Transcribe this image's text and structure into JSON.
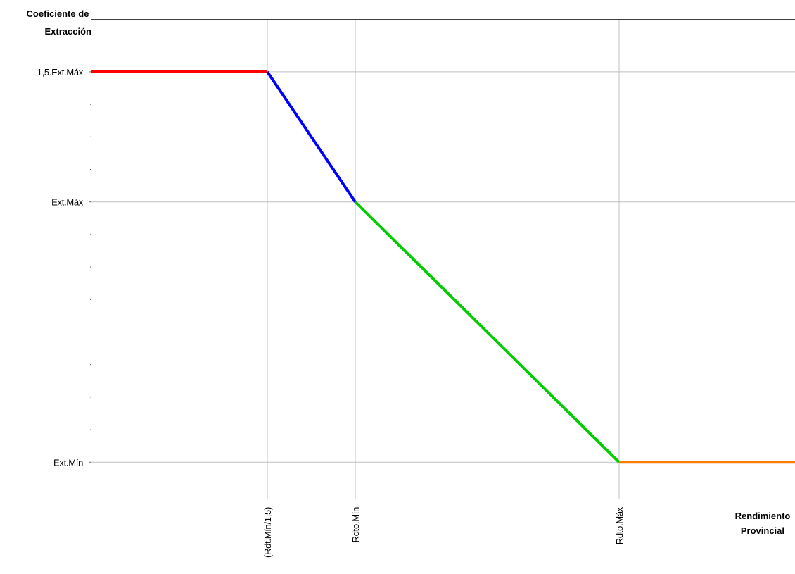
{
  "chart_data": {
    "type": "line",
    "ylabel": [
      "Coeficiente de",
      "Extracción"
    ],
    "xlabel": [
      "Rendimiento",
      "Provincial"
    ],
    "y_ticks": [
      {
        "label": "1,5.Ext.Máx",
        "value": 1.5
      },
      {
        "label": "Ext.Máx",
        "value": 1.0
      },
      {
        "label": "Ext.Mín",
        "value": 0.0
      }
    ],
    "y_minor_ticks": [
      1.375,
      1.25,
      1.125,
      0.875,
      0.75,
      0.625,
      0.5,
      0.375,
      0.25,
      0.125
    ],
    "x_ticks": [
      {
        "label": "(Rdt.Mín/1,5)",
        "value": 2.0
      },
      {
        "label": "Rdto.Mín",
        "value": 3.0
      },
      {
        "label": "Rdto.Máx",
        "value": 6.0
      }
    ],
    "xlim": [
      0,
      8
    ],
    "ylim": [
      -0.14,
      1.7
    ],
    "grid": true,
    "series": [
      {
        "color": "#ff0000",
        "points": [
          [
            0,
            1.5
          ],
          [
            2,
            1.5
          ]
        ]
      },
      {
        "color": "#0000ff",
        "points": [
          [
            2,
            1.5
          ],
          [
            3,
            1.0
          ]
        ]
      },
      {
        "color": "#00cc00",
        "points": [
          [
            3,
            1.0
          ],
          [
            6,
            0.0
          ]
        ]
      },
      {
        "color": "#ff8000",
        "points": [
          [
            6,
            0.0
          ],
          [
            8,
            0.0
          ]
        ]
      }
    ]
  }
}
